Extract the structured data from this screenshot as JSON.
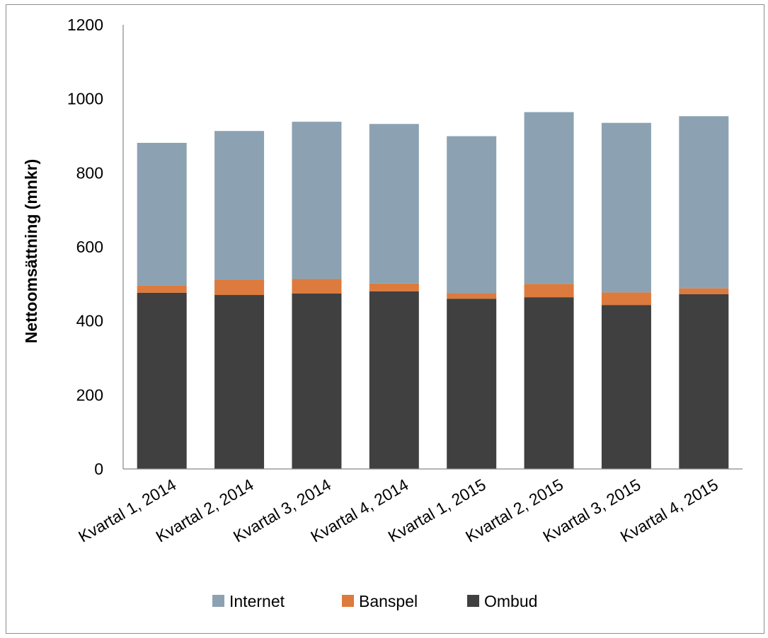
{
  "chart_data": {
    "type": "bar",
    "stacked": true,
    "title": "",
    "xlabel": "",
    "ylabel": "Nettoomsättning (mnkr)",
    "ylim": [
      0,
      1200
    ],
    "yticks": [
      "0",
      "200",
      "400",
      "600",
      "800",
      "1000",
      "1200"
    ],
    "grid": false,
    "legend_position": "bottom",
    "categories": [
      "Kvartal 1, 2014",
      "Kvartal 2, 2014",
      "Kvartal 3, 2014",
      "Kvartal 4, 2014",
      "Kvartal 1, 2015",
      "Kvartal 2, 2015",
      "Kvartal 3, 2015",
      "Kvartal 4, 2015"
    ],
    "series": [
      {
        "name": "Ombud",
        "color": "#404040",
        "values": [
          476,
          470,
          474,
          480,
          460,
          464,
          443,
          472
        ]
      },
      {
        "name": "Banspel",
        "color": "#dd7a3d",
        "values": [
          19,
          41,
          39,
          21,
          15,
          36,
          34,
          16
        ]
      },
      {
        "name": "Internet",
        "color": "#8ca2b3",
        "values": [
          386,
          402,
          425,
          431,
          424,
          464,
          458,
          465
        ]
      }
    ],
    "legend_order": [
      "Internet",
      "Banspel",
      "Ombud"
    ]
  }
}
